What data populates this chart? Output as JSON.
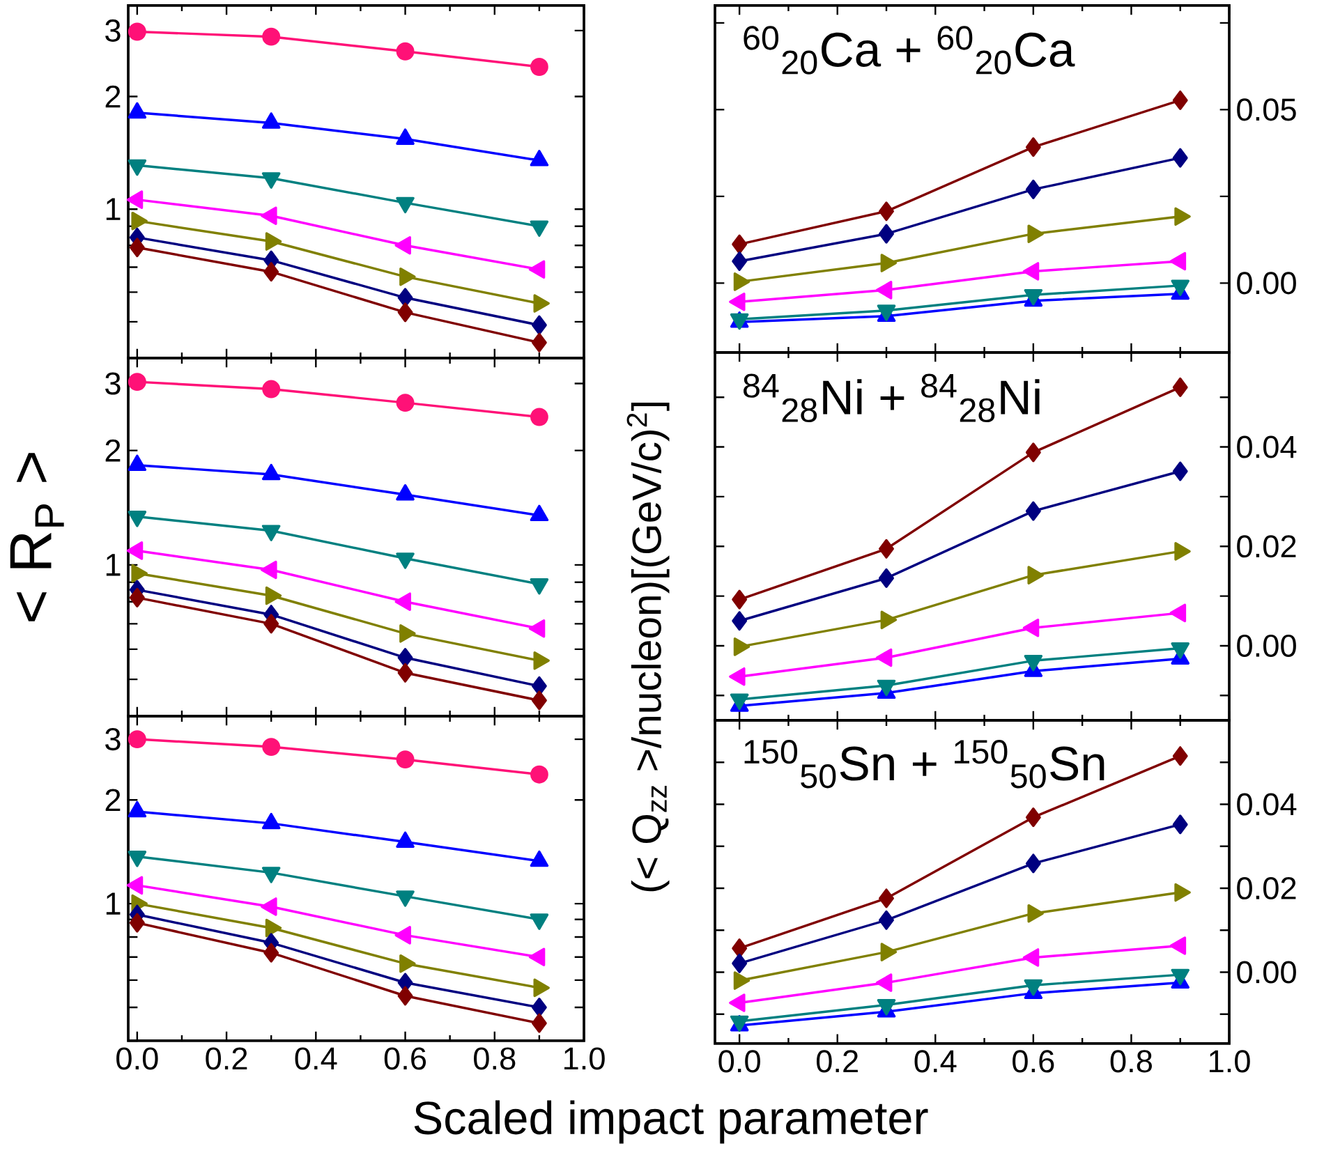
{
  "chart_data": [
    {
      "type": "line",
      "x": [
        0,
        0.3,
        0.6,
        0.9
      ],
      "log": "y",
      "xlim": [
        -0.02,
        1.0
      ],
      "ylim": [
        0.4,
        3.5
      ],
      "tick_labels": "y",
      "xticks": [
        {
          "value": 0,
          "label": null
        },
        {
          "value": 0.2,
          "label": null
        },
        {
          "value": 0.4,
          "label": null
        },
        {
          "value": 0.6,
          "label": null
        },
        {
          "value": 0.8,
          "label": null
        },
        {
          "value": 1.0,
          "label": null
        }
      ],
      "yticks": [
        {
          "value": 0.4,
          "label": null
        },
        {
          "value": 0.5,
          "label": null
        },
        {
          "value": 0.6,
          "label": null
        },
        {
          "value": 0.7,
          "label": null
        },
        {
          "value": 0.8,
          "label": null
        },
        {
          "value": 0.9,
          "label": null
        },
        1,
        2,
        3
      ],
      "series": [
        {
          "color": "#ff1177",
          "marker": "circle",
          "values": [
            2.98,
            2.89,
            2.64,
            2.4
          ]
        },
        {
          "color": "#0000ff",
          "marker": "triangle",
          "values": [
            1.81,
            1.7,
            1.54,
            1.35
          ]
        },
        {
          "color": "#008080",
          "marker": "triangle-down",
          "values": [
            1.31,
            1.21,
            1.04,
            0.9
          ]
        },
        {
          "color": "#ff00ff",
          "marker": "triangle-left",
          "values": [
            1.06,
            0.96,
            0.8,
            0.69
          ]
        },
        {
          "color": "#808000",
          "marker": "triangle-right",
          "values": [
            0.93,
            0.82,
            0.66,
            0.56
          ]
        },
        {
          "color": "#000080",
          "marker": "diamond",
          "values": [
            0.84,
            0.73,
            0.58,
            0.49
          ]
        },
        {
          "color": "#800000",
          "marker": "diamond",
          "values": [
            0.79,
            0.68,
            0.53,
            0.44
          ]
        }
      ]
    },
    {
      "type": "line",
      "x": [
        0,
        0.3,
        0.6,
        0.9
      ],
      "xlim": [
        -0.05,
        1.0
      ],
      "ylim": [
        -0.02,
        0.08
      ],
      "tick_labels": "y",
      "annotations": [
        "$^{60}$$_{20}$Ca + $^{60}$$_{20}$Ca"
      ],
      "xticks": [
        {
          "value": 0,
          "label": null
        },
        {
          "value": 0.2,
          "label": null
        },
        {
          "value": 0.4,
          "label": null
        },
        {
          "value": 0.6,
          "label": null
        },
        {
          "value": 0.8,
          "label": null
        },
        {
          "value": 1.0,
          "label": null
        }
      ],
      "yticks": [
        {
          "value": 0,
          "label": "0.00"
        },
        {
          "value": 0.025,
          "label": null
        },
        {
          "value": 0.05,
          "label": "0.05"
        },
        {
          "value": 0.075,
          "label": null
        }
      ],
      "series": [
        {
          "color": "#800000",
          "marker": "diamond",
          "values": [
            0.0112,
            0.0207,
            0.0392,
            0.0527
          ]
        },
        {
          "color": "#000080",
          "marker": "diamond",
          "values": [
            0.0063,
            0.0142,
            0.027,
            0.0361
          ]
        },
        {
          "color": "#808000",
          "marker": "triangle-right",
          "values": [
            0.0004,
            0.0058,
            0.0142,
            0.0192
          ]
        },
        {
          "color": "#ff00ff",
          "marker": "triangle-left",
          "values": [
            -0.0054,
            -0.002,
            0.0034,
            0.0063
          ]
        },
        {
          "color": "#0000ff",
          "marker": "triangle",
          "values": [
            -0.0112,
            -0.0095,
            -0.0051,
            -0.0031
          ]
        },
        {
          "color": "#008080",
          "marker": "triangle-down",
          "values": [
            -0.0104,
            -0.0079,
            -0.0034,
            -0.0007
          ]
        }
      ]
    },
    {
      "type": "line",
      "x": [
        0,
        0.3,
        0.6,
        0.9
      ],
      "log": "y",
      "xlim": [
        -0.02,
        1.0
      ],
      "ylim": [
        0.4,
        3.5
      ],
      "tick_labels": "y",
      "ylabel": "< R$_{P}$ >",
      "xticks": [
        {
          "value": 0,
          "label": null
        },
        {
          "value": 0.2,
          "label": null
        },
        {
          "value": 0.4,
          "label": null
        },
        {
          "value": 0.6,
          "label": null
        },
        {
          "value": 0.8,
          "label": null
        },
        {
          "value": 1.0,
          "label": null
        }
      ],
      "yticks": [
        {
          "value": 0.4,
          "label": null
        },
        {
          "value": 0.5,
          "label": null
        },
        {
          "value": 0.6,
          "label": null
        },
        {
          "value": 0.7,
          "label": null
        },
        {
          "value": 0.8,
          "label": null
        },
        {
          "value": 0.9,
          "label": null
        },
        1,
        2,
        3
      ],
      "series": [
        {
          "color": "#ff1177",
          "marker": "circle",
          "values": [
            3.03,
            2.9,
            2.67,
            2.45
          ]
        },
        {
          "color": "#0000ff",
          "marker": "triangle",
          "values": [
            1.83,
            1.73,
            1.53,
            1.35
          ]
        },
        {
          "color": "#008080",
          "marker": "triangle-down",
          "values": [
            1.34,
            1.23,
            1.04,
            0.89
          ]
        },
        {
          "color": "#ff00ff",
          "marker": "triangle-left",
          "values": [
            1.09,
            0.97,
            0.8,
            0.68
          ]
        },
        {
          "color": "#808000",
          "marker": "triangle-right",
          "values": [
            0.95,
            0.83,
            0.66,
            0.56
          ]
        },
        {
          "color": "#000080",
          "marker": "diamond",
          "values": [
            0.86,
            0.74,
            0.57,
            0.48
          ]
        },
        {
          "color": "#800000",
          "marker": "diamond",
          "values": [
            0.82,
            0.7,
            0.52,
            0.44
          ]
        }
      ]
    },
    {
      "type": "line",
      "x": [
        0,
        0.3,
        0.6,
        0.9
      ],
      "xlim": [
        -0.05,
        1.0
      ],
      "ylim": [
        -0.015,
        0.059
      ],
      "tick_labels": "y",
      "ylabel": "(< Q$_{zz}$ >/nucleon)[(GeV/c)$^{2}$]",
      "annotations": [
        "$^{84}$$_{28}$Ni + $^{84}$$_{28}$Ni"
      ],
      "xticks": [
        {
          "value": 0,
          "label": null
        },
        {
          "value": 0.2,
          "label": null
        },
        {
          "value": 0.4,
          "label": null
        },
        {
          "value": 0.6,
          "label": null
        },
        {
          "value": 0.8,
          "label": null
        },
        {
          "value": 1.0,
          "label": null
        }
      ],
      "yticks": [
        {
          "value": -0.01,
          "label": null
        },
        {
          "value": 0,
          "label": "0.00"
        },
        {
          "value": 0.01,
          "label": null
        },
        {
          "value": 0.02,
          "label": "0.02"
        },
        {
          "value": 0.03,
          "label": null
        },
        {
          "value": 0.04,
          "label": "0.04"
        },
        {
          "value": 0.05,
          "label": null
        }
      ],
      "series": [
        {
          "color": "#800000",
          "marker": "diamond",
          "values": [
            0.0093,
            0.0195,
            0.0389,
            0.052
          ]
        },
        {
          "color": "#000080",
          "marker": "diamond",
          "values": [
            0.005,
            0.0136,
            0.0271,
            0.0351
          ]
        },
        {
          "color": "#808000",
          "marker": "triangle-right",
          "values": [
            -0.0002,
            0.0052,
            0.0142,
            0.019
          ]
        },
        {
          "color": "#ff00ff",
          "marker": "triangle-left",
          "values": [
            -0.0062,
            -0.0024,
            0.0036,
            0.0066
          ]
        },
        {
          "color": "#0000ff",
          "marker": "triangle",
          "values": [
            -0.0121,
            -0.0095,
            -0.0051,
            -0.0026
          ]
        },
        {
          "color": "#008080",
          "marker": "triangle-down",
          "values": [
            -0.0108,
            -0.008,
            -0.003,
            -0.0005
          ]
        }
      ]
    },
    {
      "type": "line",
      "x": [
        0,
        0.3,
        0.6,
        0.9
      ],
      "log": "y",
      "xlim": [
        -0.02,
        1.0
      ],
      "ylim": [
        0.4,
        3.5
      ],
      "xlabel": "Scaled impact parameter",
      "xticks": [
        {
          "value": 0,
          "label": "0.0"
        },
        {
          "value": 0.2,
          "label": "0.2"
        },
        {
          "value": 0.4,
          "label": "0.4"
        },
        {
          "value": 0.6,
          "label": "0.6"
        },
        {
          "value": 0.8,
          "label": "0.8"
        },
        {
          "value": 1.0,
          "label": "1.0"
        }
      ],
      "yticks": [
        {
          "value": 0.4,
          "label": null
        },
        {
          "value": 0.5,
          "label": null
        },
        {
          "value": 0.6,
          "label": null
        },
        {
          "value": 0.7,
          "label": null
        },
        {
          "value": 0.8,
          "label": null
        },
        {
          "value": 0.9,
          "label": null
        },
        1,
        2,
        3
      ],
      "series": [
        {
          "color": "#ff1177",
          "marker": "circle",
          "values": [
            3.0,
            2.85,
            2.62,
            2.37
          ]
        },
        {
          "color": "#0000ff",
          "marker": "triangle",
          "values": [
            1.85,
            1.71,
            1.51,
            1.33
          ]
        },
        {
          "color": "#008080",
          "marker": "triangle-down",
          "values": [
            1.37,
            1.23,
            1.05,
            0.9
          ]
        },
        {
          "color": "#ff00ff",
          "marker": "triangle-left",
          "values": [
            1.13,
            0.98,
            0.81,
            0.7
          ]
        },
        {
          "color": "#808000",
          "marker": "triangle-right",
          "values": [
            1.0,
            0.85,
            0.67,
            0.57
          ]
        },
        {
          "color": "#000080",
          "marker": "diamond",
          "values": [
            0.93,
            0.77,
            0.59,
            0.5
          ]
        },
        {
          "color": "#800000",
          "marker": "diamond",
          "values": [
            0.88,
            0.72,
            0.54,
            0.45
          ]
        }
      ]
    },
    {
      "type": "line",
      "x": [
        0,
        0.3,
        0.6,
        0.9
      ],
      "xlim": [
        -0.05,
        1.0
      ],
      "ylim": [
        -0.017,
        0.06
      ],
      "annotations": [
        "$^{150}$$_{50}$Sn + $^{150}$$_{50}$Sn"
      ],
      "xticks": [
        {
          "value": 0,
          "label": "0.0"
        },
        {
          "value": 0.2,
          "label": "0.2"
        },
        {
          "value": 0.4,
          "label": "0.4"
        },
        {
          "value": 0.6,
          "label": "0.6"
        },
        {
          "value": 0.8,
          "label": "0.8"
        },
        {
          "value": 1.0,
          "label": "1.0"
        }
      ],
      "yticks": [
        {
          "value": -0.01,
          "label": null
        },
        {
          "value": 0,
          "label": "0.00"
        },
        {
          "value": 0.01,
          "label": null
        },
        {
          "value": 0.02,
          "label": "0.02"
        },
        {
          "value": 0.03,
          "label": null
        },
        {
          "value": 0.04,
          "label": "0.04"
        },
        {
          "value": 0.05,
          "label": null
        }
      ],
      "series": [
        {
          "color": "#800000",
          "marker": "diamond",
          "values": [
            0.0057,
            0.0176,
            0.0369,
            0.0515
          ]
        },
        {
          "color": "#000080",
          "marker": "diamond",
          "values": [
            0.0021,
            0.0124,
            0.0259,
            0.0352
          ]
        },
        {
          "color": "#808000",
          "marker": "triangle-right",
          "values": [
            -0.002,
            0.0048,
            0.014,
            0.019
          ]
        },
        {
          "color": "#ff00ff",
          "marker": "triangle-left",
          "values": [
            -0.0073,
            -0.0025,
            0.0035,
            0.0063
          ]
        },
        {
          "color": "#0000ff",
          "marker": "triangle",
          "values": [
            -0.0127,
            -0.0094,
            -0.005,
            -0.0025
          ]
        },
        {
          "color": "#008080",
          "marker": "triangle-down",
          "values": [
            -0.0117,
            -0.0078,
            -0.0031,
            -0.0006
          ]
        }
      ]
    }
  ]
}
